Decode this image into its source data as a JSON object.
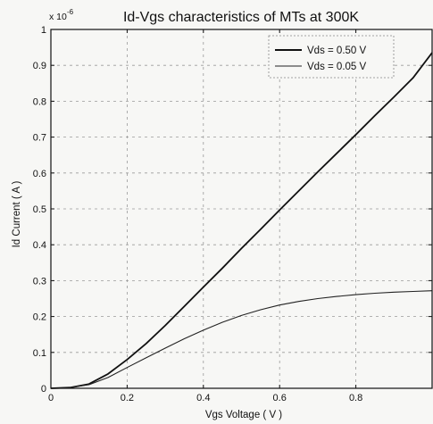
{
  "chart_data": {
    "type": "line",
    "title": "Id-Vgs characteristics of MTs at 300K",
    "xlabel": "Vgs Voltage ( V )",
    "ylabel": "Id Current ( A )",
    "y_multiplier_label": "x 10",
    "y_multiplier_exponent": "-6",
    "xlim": [
      0,
      1.0
    ],
    "ylim": [
      0,
      1.0
    ],
    "x_ticks": [
      0,
      0.2,
      0.4,
      0.6,
      0.8,
      1
    ],
    "x_tick_labels": [
      "0",
      "0.2",
      "0.4",
      "0.6",
      "0.8",
      ""
    ],
    "y_ticks": [
      0,
      0.1,
      0.2,
      0.3,
      0.4,
      0.5,
      0.6,
      0.7,
      0.8,
      0.9,
      1
    ],
    "y_tick_labels": [
      "0",
      "0.1",
      "0.2",
      "0.3",
      "0.4",
      "0.5",
      "0.6",
      "0.7",
      "0.8",
      "0.9",
      "1"
    ],
    "grid": true,
    "legend_position": "top-right",
    "series": [
      {
        "name": "Vds = 0.50 V",
        "color": "#111111",
        "style": "solid-thick",
        "x": [
          0,
          0.05,
          0.1,
          0.15,
          0.2,
          0.25,
          0.3,
          0.35,
          0.4,
          0.45,
          0.5,
          0.55,
          0.6,
          0.65,
          0.7,
          0.75,
          0.8,
          0.85,
          0.9,
          0.95,
          1.0
        ],
        "y": [
          0,
          0.002,
          0.012,
          0.04,
          0.08,
          0.125,
          0.175,
          0.228,
          0.282,
          0.335,
          0.39,
          0.443,
          0.497,
          0.55,
          0.603,
          0.655,
          0.707,
          0.76,
          0.812,
          0.865,
          0.935
        ]
      },
      {
        "name": "Vds = 0.05 V",
        "color": "#222222",
        "style": "solid-thin",
        "x": [
          0,
          0.05,
          0.1,
          0.15,
          0.2,
          0.25,
          0.3,
          0.35,
          0.4,
          0.45,
          0.5,
          0.55,
          0.6,
          0.65,
          0.7,
          0.75,
          0.8,
          0.85,
          0.9,
          0.95,
          1.0
        ],
        "y": [
          0,
          0.002,
          0.01,
          0.03,
          0.058,
          0.085,
          0.112,
          0.138,
          0.162,
          0.184,
          0.203,
          0.219,
          0.232,
          0.242,
          0.25,
          0.256,
          0.261,
          0.265,
          0.268,
          0.27,
          0.272
        ]
      }
    ]
  }
}
